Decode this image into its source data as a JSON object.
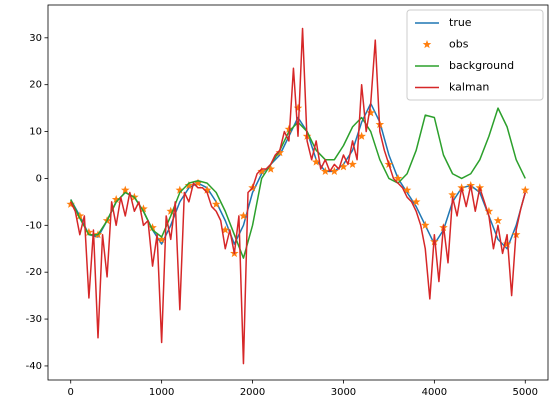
{
  "chart_data": {
    "type": "line",
    "x": [
      0,
      100,
      200,
      300,
      400,
      500,
      600,
      700,
      800,
      900,
      1000,
      1100,
      1200,
      1300,
      1400,
      1500,
      1600,
      1700,
      1800,
      1900,
      2000,
      2100,
      2200,
      2300,
      2400,
      2500,
      2600,
      2700,
      2800,
      2900,
      3000,
      3100,
      3200,
      3300,
      3400,
      3500,
      3600,
      3700,
      3800,
      3900,
      4000,
      4100,
      4200,
      4300,
      4400,
      4500,
      4600,
      4700,
      4800,
      4900,
      5000
    ],
    "series": [
      {
        "name": "true",
        "color": "#1f77b4",
        "style": "line",
        "values": [
          -4.5,
          -8,
          -12,
          -12.5,
          -9,
          -5,
          -3,
          -4,
          -7,
          -11,
          -14,
          -10,
          -5,
          -2,
          -1,
          -2,
          -5,
          -9,
          -14,
          -10,
          -3,
          1,
          3,
          5,
          9,
          13,
          10,
          4,
          1.5,
          1.5,
          3,
          6,
          12,
          16,
          12,
          5,
          0,
          -3,
          -6,
          -10,
          -14,
          -11,
          -5,
          -2,
          -1.5,
          -3,
          -8,
          -13,
          -15,
          -10,
          -3
        ]
      },
      {
        "name": "obs",
        "color": "#ff7f0e",
        "style": "marker",
        "values": [
          -5.5,
          -8,
          -11.5,
          -12,
          -9,
          -4.5,
          -2.5,
          -4,
          -6.5,
          -10.5,
          -13,
          -7,
          -2.5,
          -1.5,
          -1,
          -2.5,
          -5.5,
          -11,
          -16,
          -8,
          -2,
          1.5,
          2,
          5.5,
          10.5,
          15,
          9,
          3.5,
          1.5,
          1.5,
          2.5,
          3,
          9,
          14,
          11.5,
          3,
          0,
          -2.5,
          -5,
          -10,
          -13.5,
          -10.5,
          -3.5,
          -2,
          -1.5,
          -2,
          -7,
          -9,
          -14,
          -12,
          -2.5
        ]
      },
      {
        "name": "background",
        "color": "#2ca02c",
        "style": "line",
        "values": [
          -4.5,
          -8.5,
          -12,
          -12,
          -9,
          -5,
          -3,
          -4,
          -7,
          -11,
          -12.5,
          -8,
          -3,
          -1,
          -0.5,
          -1,
          -3,
          -7,
          -12,
          -17,
          -10,
          0,
          3,
          6,
          10,
          12,
          10,
          6,
          4,
          4,
          7,
          11,
          13,
          10,
          4,
          0,
          -1,
          1,
          6,
          13.5,
          13,
          5,
          1,
          0,
          1,
          4,
          9,
          15,
          11,
          4,
          0
        ]
      },
      {
        "name": "kalman",
        "color": "#d62728",
        "style": "line",
        "x": [
          0,
          50,
          100,
          150,
          200,
          250,
          300,
          350,
          400,
          450,
          500,
          550,
          600,
          650,
          700,
          750,
          800,
          850,
          900,
          950,
          1000,
          1050,
          1100,
          1150,
          1200,
          1250,
          1300,
          1350,
          1400,
          1450,
          1500,
          1550,
          1600,
          1650,
          1700,
          1750,
          1800,
          1850,
          1900,
          1950,
          2000,
          2050,
          2100,
          2150,
          2200,
          2250,
          2300,
          2350,
          2400,
          2450,
          2500,
          2550,
          2600,
          2650,
          2700,
          2750,
          2800,
          2850,
          2900,
          2950,
          3000,
          3050,
          3100,
          3150,
          3200,
          3250,
          3300,
          3350,
          3400,
          3450,
          3500,
          3550,
          3600,
          3650,
          3700,
          3750,
          3800,
          3850,
          3900,
          3950,
          4000,
          4050,
          4100,
          4150,
          4200,
          4250,
          4300,
          4350,
          4400,
          4450,
          4500,
          4550,
          4600,
          4650,
          4700,
          4750,
          4800,
          4850,
          4900,
          4950,
          5000
        ],
        "values": [
          -5,
          -7,
          -12,
          -8,
          -25.5,
          -11,
          -34,
          -12,
          -21,
          -5,
          -10,
          -4,
          -8,
          -3,
          -7,
          -5,
          -10,
          -9,
          -18.7,
          -12,
          -35,
          -8,
          -13,
          -5,
          -28,
          -3,
          -5,
          -1,
          -2,
          -2,
          -3,
          -6,
          -7,
          -9,
          -15,
          -11,
          -16,
          -8,
          -39.5,
          -3,
          -2,
          1,
          2,
          2,
          3,
          5,
          6,
          10,
          8,
          23.5,
          9,
          32,
          8,
          4,
          8,
          2,
          4,
          1.5,
          3,
          2,
          5,
          3,
          8,
          4,
          20,
          10,
          16,
          29.5,
          10,
          6,
          3,
          0,
          -1,
          -2,
          -4,
          -5,
          -7,
          -10,
          -15,
          -25.7,
          -12,
          -22,
          -10,
          -18,
          -4,
          -8,
          -2,
          -6,
          -1.5,
          -7,
          -2,
          -5,
          -8,
          -15,
          -10,
          -16,
          -12,
          -25,
          -11,
          -6.5,
          -3
        ]
      }
    ],
    "xlim": [
      -250,
      5250
    ],
    "ylim": [
      -43,
      37
    ],
    "xticks": [
      0,
      1000,
      2000,
      3000,
      4000,
      5000
    ],
    "yticks": [
      -40,
      -30,
      -20,
      -10,
      0,
      10,
      20,
      30
    ],
    "legend": "upper right"
  }
}
